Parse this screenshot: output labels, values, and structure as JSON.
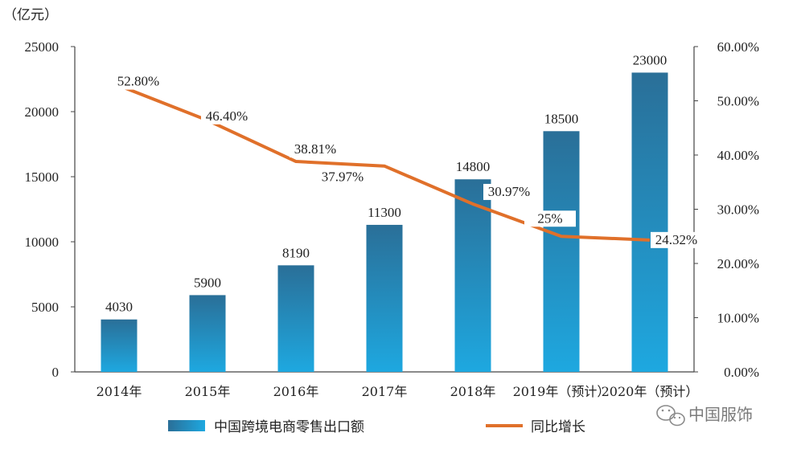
{
  "chart_data": {
    "type": "bar",
    "unit_label": "（亿元）",
    "categories": [
      "2014年",
      "2015年",
      "2016年",
      "2017年",
      "2018年",
      "2019年（预计）",
      "2020年（预计）"
    ],
    "series": [
      {
        "name": "中国跨境电商零售出口额",
        "type": "bar",
        "axis": "left",
        "values": [
          4030,
          5900,
          8190,
          11300,
          14800,
          18500,
          23000
        ],
        "labels": [
          "4030",
          "5900",
          "8190",
          "11300",
          "14800",
          "18500",
          "23000"
        ]
      },
      {
        "name": "同比增长",
        "type": "line",
        "axis": "right",
        "values": [
          52.8,
          46.4,
          38.81,
          37.97,
          30.97,
          25,
          24.32
        ],
        "labels": [
          "52.80%",
          "46.40%",
          "38.81%",
          "37.97%",
          "30.97%",
          "25%",
          "24.32%"
        ]
      }
    ],
    "y_left": {
      "min": 0,
      "max": 25000,
      "ticks": [
        "0",
        "5000",
        "10000",
        "15000",
        "20000",
        "25000"
      ]
    },
    "y_right": {
      "min": 0,
      "max": 60,
      "ticks": [
        "0.00%",
        "10.00%",
        "20.00%",
        "30.00%",
        "40.00%",
        "50.00%",
        "60.00%"
      ]
    },
    "grid": false,
    "legend_position": "bottom",
    "colors": {
      "bar_top": "#2a6f98",
      "bar_bottom": "#1ea8e0",
      "line": "#e0702a",
      "axis": "#444444"
    }
  },
  "watermark": {
    "icon": "wechat-icon",
    "text": "中国服饰"
  }
}
